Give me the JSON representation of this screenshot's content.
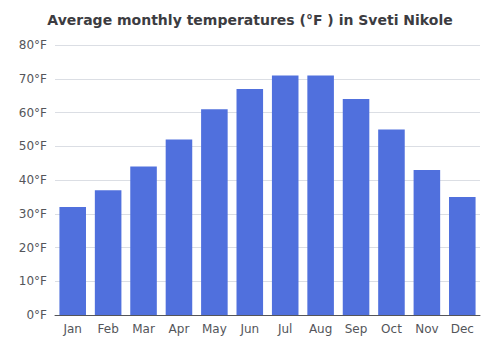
{
  "chart_data": {
    "type": "bar",
    "title": "Average monthly temperatures (°F ) in Sveti Nikole",
    "categories": [
      "Jan",
      "Feb",
      "Mar",
      "Apr",
      "May",
      "Jun",
      "Jul",
      "Aug",
      "Sep",
      "Oct",
      "Nov",
      "Dec"
    ],
    "values": [
      32,
      37,
      44,
      52,
      61,
      67,
      71,
      71,
      64,
      55,
      43,
      35
    ],
    "ylim": [
      0,
      80
    ],
    "yticks": [
      {
        "value": 0,
        "label": "0°F"
      },
      {
        "value": 10,
        "label": "10°F"
      },
      {
        "value": 20,
        "label": "20°F"
      },
      {
        "value": 30,
        "label": "30°F"
      },
      {
        "value": 40,
        "label": "40°F"
      },
      {
        "value": 50,
        "label": "50°F"
      },
      {
        "value": 60,
        "label": "60°F"
      },
      {
        "value": 70,
        "label": "70°F"
      },
      {
        "value": 80,
        "label": "80°F"
      }
    ],
    "grid": true
  }
}
